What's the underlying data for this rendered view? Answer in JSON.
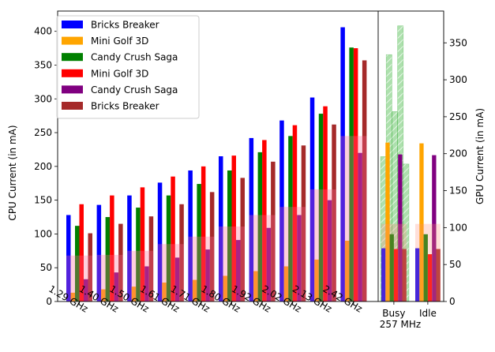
{
  "chart_data": {
    "type": "bar",
    "title": "",
    "ylabel": "CPU Current (in mA)",
    "y2label": "GPU Current (in mA)",
    "ylim": [
      0,
      430
    ],
    "y2lim": [
      0,
      393
    ],
    "yticks": [
      0,
      50,
      100,
      150,
      200,
      250,
      300,
      350,
      400
    ],
    "y2ticks": [
      0,
      50,
      100,
      150,
      200,
      250,
      300,
      350
    ],
    "legend_position": "upper-left",
    "cpu_panel": {
      "categories": [
        "1.29 GHz",
        "1.40 GHz",
        "1.50 GHz",
        "1.61 GHz",
        "1.71 GHz",
        "1.80 GHz",
        "1.92 GHz",
        "2.02 GHz",
        "2.13 GHz",
        "2.42 GHz"
      ],
      "series": [
        {
          "name": "Bricks Breaker",
          "color": "#0000ff",
          "values": [
            128,
            143,
            157,
            176,
            194,
            215,
            242,
            268,
            302,
            406
          ]
        },
        {
          "name": "Mini Golf 3D",
          "color": "#ffa500",
          "values": [
            13,
            18,
            22,
            28,
            32,
            38,
            45,
            52,
            62,
            90
          ]
        },
        {
          "name": "Candy Crush Saga",
          "color": "#008000",
          "values": [
            112,
            125,
            139,
            157,
            174,
            194,
            221,
            245,
            278,
            376
          ]
        },
        {
          "name": "Mini Golf 3D",
          "color": "#ff0000",
          "values": [
            144,
            157,
            169,
            185,
            200,
            216,
            239,
            261,
            289,
            375
          ]
        },
        {
          "name": "Candy Crush Saga",
          "color": "#800080",
          "values": [
            33,
            43,
            52,
            65,
            77,
            91,
            109,
            128,
            150,
            220
          ]
        },
        {
          "name": "Bricks Breaker",
          "color": "#a52a2a",
          "values": [
            101,
            115,
            126,
            144,
            162,
            183,
            207,
            231,
            262,
            357
          ]
        }
      ],
      "translucent_values": [
        68,
        69,
        75,
        85,
        96,
        111,
        128,
        140,
        166,
        245
      ]
    },
    "gpu_panel": {
      "categories": [
        "Busy",
        "Idle"
      ],
      "sublabel": "257 MHz",
      "series": [
        {
          "name": "Bricks Breaker",
          "color": "#0000ff",
          "values": [
            72,
            72
          ]
        },
        {
          "name": "Mini Golf 3D",
          "color": "#ffa500",
          "values": [
            215,
            214
          ]
        },
        {
          "name": "Candy Crush Saga",
          "color": "#008000",
          "values": [
            91,
            91
          ]
        },
        {
          "name": "Mini Golf 3D",
          "color": "#ff0000",
          "values": [
            71,
            64
          ]
        },
        {
          "name": "Candy Crush Saga",
          "color": "#800080",
          "values": [
            199,
            198
          ]
        },
        {
          "name": "Bricks Breaker",
          "color": "#a52a2a",
          "values": [
            71,
            71
          ]
        }
      ],
      "hatched_values": [
        196,
        334,
        257,
        373,
        186
      ],
      "translucent_values": [
        105,
        105
      ]
    }
  }
}
